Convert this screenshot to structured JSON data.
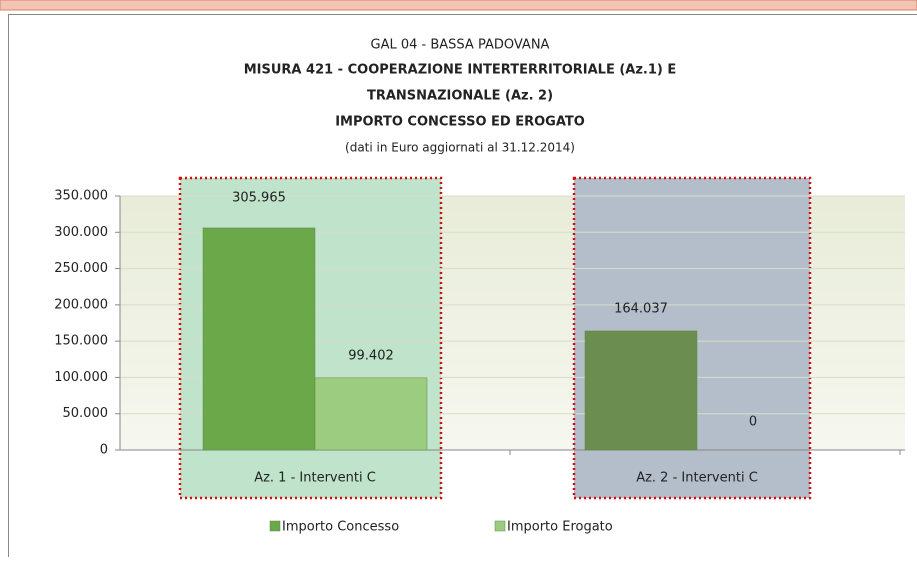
{
  "chart_data": {
    "type": "bar",
    "title_lines": [
      "GAL 04 - BASSA PADOVANA",
      "MISURA 421  -  COOPERAZIONE INTERTERRITORIALE   (Az.1) E",
      "TRANSNAZIONALE (Az. 2)",
      "IMPORTO CONCESSO ED EROGATO",
      "(dati in Euro aggiornati al 31.12.2014)"
    ],
    "categories": [
      "Az. 1 - Interventi C",
      "Az. 2 - Interventi C"
    ],
    "series": [
      {
        "name": "Importo Concesso",
        "color": "#6aa84a",
        "point_colors": [
          "#6aa84a",
          "#6b8d4f"
        ],
        "values": [
          305965,
          164037
        ],
        "value_labels": [
          "305.965",
          "164.037"
        ]
      },
      {
        "name": "Importo Erogato",
        "color": "#9ccc80",
        "values": [
          99402,
          0
        ],
        "value_labels": [
          "99.402",
          "0"
        ]
      }
    ],
    "ylim": [
      0,
      350000
    ],
    "yticks": [
      0,
      {
        "value": 50000,
        "label": "50.000"
      },
      {
        "value": 100000,
        "label": "100.000"
      },
      {
        "value": 150000,
        "label": "150.000"
      },
      {
        "value": 200000,
        "label": "200.000"
      },
      {
        "value": 250000,
        "label": "250.000"
      },
      {
        "value": 300000,
        "label": "300.000"
      },
      {
        "value": 350000,
        "label": "350.000"
      }
    ],
    "grid": true,
    "legend": "bottom"
  }
}
